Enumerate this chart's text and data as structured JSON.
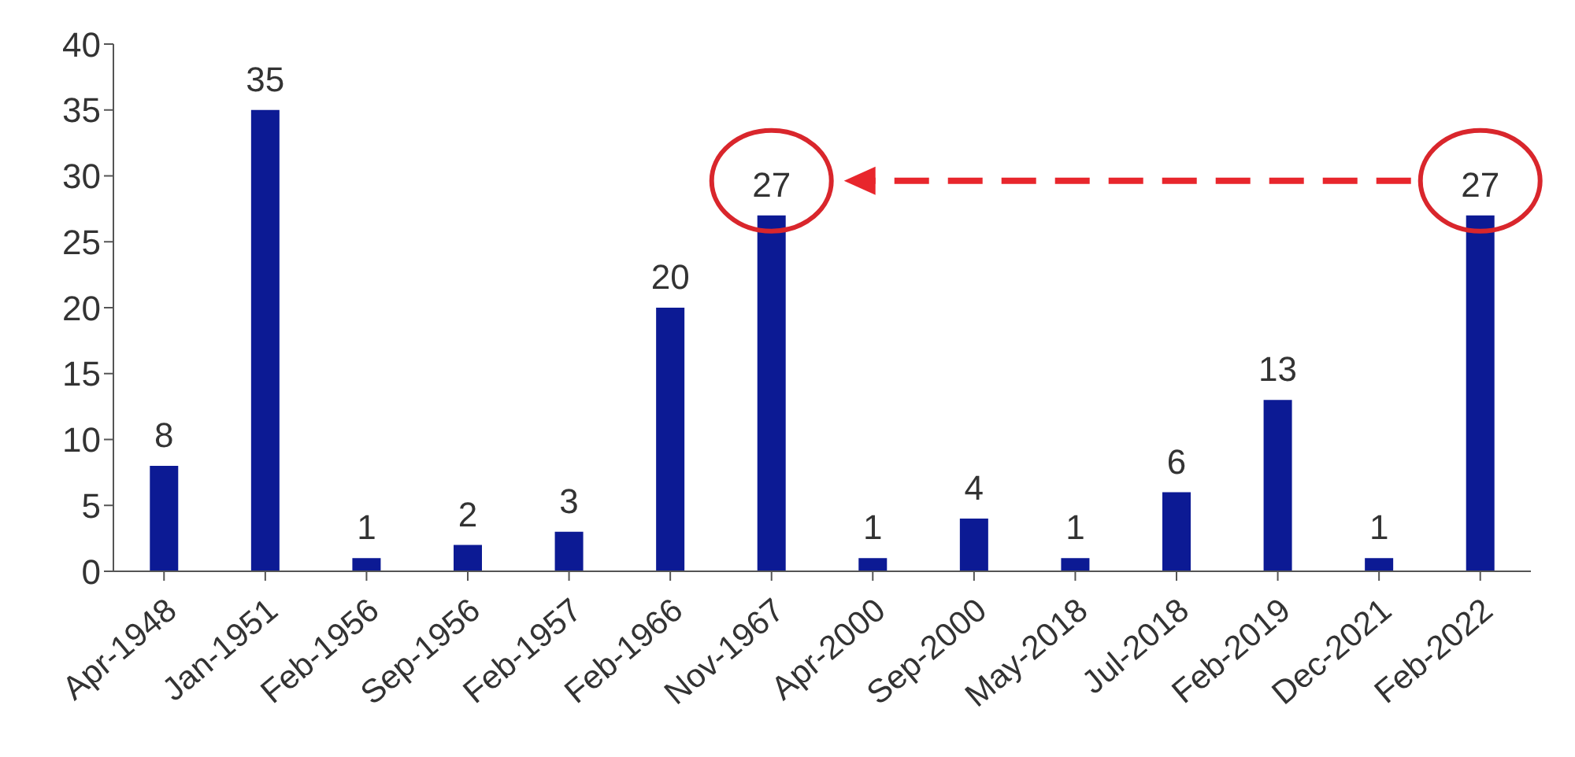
{
  "chart_data": {
    "type": "bar",
    "categories": [
      "Apr-1948",
      "Jan-1951",
      "Feb-1956",
      "Sep-1956",
      "Feb-1957",
      "Feb-1966",
      "Nov-1967",
      "Apr-2000",
      "Sep-2000",
      "May-2018",
      "Jul-2018",
      "Feb-2019",
      "Dec-2021",
      "Feb-2022"
    ],
    "values": [
      8,
      35,
      1,
      2,
      3,
      20,
      27,
      1,
      4,
      1,
      6,
      13,
      1,
      27
    ],
    "color": "#0c1a94",
    "ylim": [
      0,
      40
    ],
    "yticks": [
      0,
      5,
      10,
      15,
      20,
      25,
      30,
      35,
      40
    ],
    "data_labels": true
  }
}
